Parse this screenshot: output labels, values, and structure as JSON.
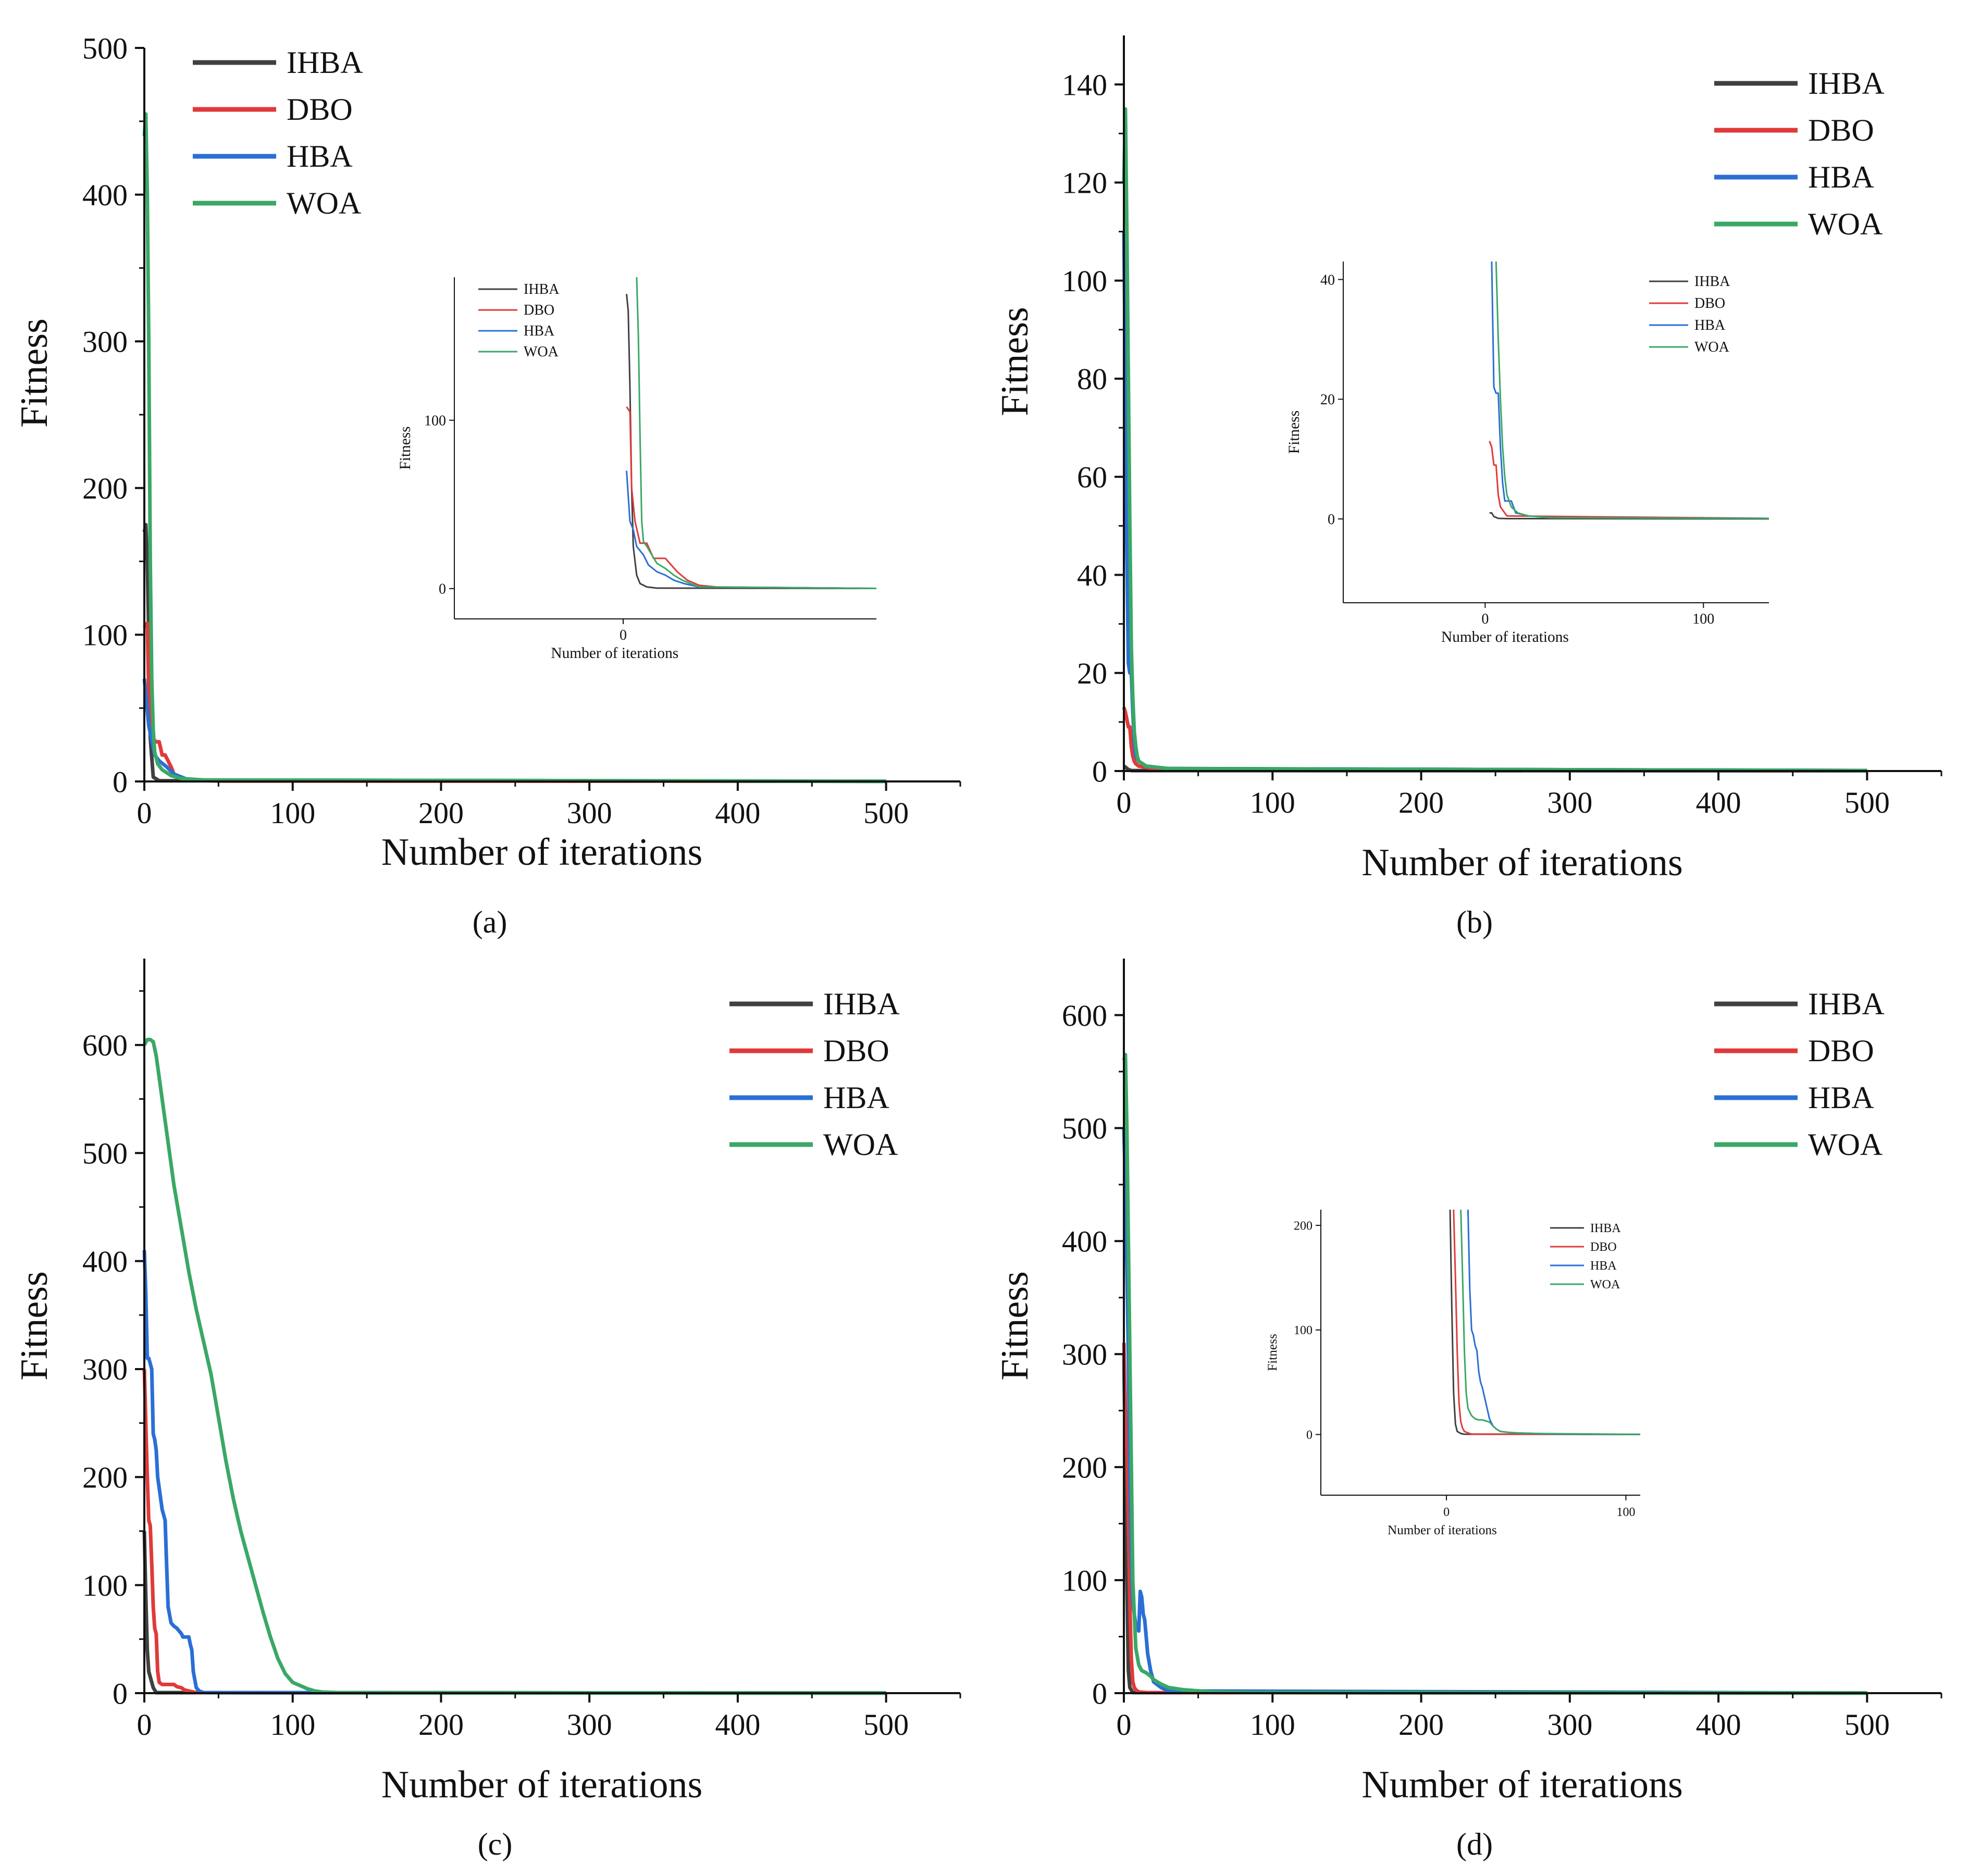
{
  "figure": {
    "caption_labels": [
      "(a)",
      "(b)",
      "(c)",
      "(d)"
    ]
  },
  "series_colors": {
    "IHBA": "#404040",
    "DBO": "#e03a3a",
    "HBA": "#2a6fd6",
    "WOA": "#3aa866"
  },
  "chart_data": [
    {
      "id": "a",
      "type": "line",
      "caption": "(a)",
      "xlabel": "Number of iterations",
      "ylabel": "Fitness",
      "xlim": [
        0,
        550
      ],
      "ylim": [
        0,
        500
      ],
      "xticks": [
        0,
        100,
        200,
        300,
        400,
        500
      ],
      "yticks": [
        0,
        100,
        200,
        300,
        400,
        500
      ],
      "legend": [
        "IHBA",
        "DBO",
        "HBA",
        "WOA"
      ],
      "series": [
        {
          "name": "IHBA",
          "x": [
            0,
            1,
            2,
            3,
            4,
            6,
            10,
            500
          ],
          "y": [
            170,
            175,
            150,
            100,
            30,
            3,
            0.5,
            0.1
          ]
        },
        {
          "name": "DBO",
          "x": [
            0,
            2,
            3,
            5,
            8,
            10,
            12,
            14,
            18,
            20,
            25,
            30,
            50,
            500
          ],
          "y": [
            105,
            108,
            60,
            30,
            27,
            27,
            18,
            18,
            10,
            5,
            3,
            1,
            0.3,
            0.1
          ]
        },
        {
          "name": "HBA",
          "x": [
            0,
            1,
            3,
            5,
            7,
            10,
            15,
            20,
            25,
            30,
            500
          ],
          "y": [
            70,
            60,
            38,
            28,
            18,
            14,
            10,
            5,
            3,
            1,
            0.1
          ]
        },
        {
          "name": "WOA",
          "x": [
            0,
            1,
            2,
            3,
            4,
            5,
            6,
            7,
            9,
            12,
            18,
            25,
            40,
            500
          ],
          "y": [
            440,
            455,
            400,
            300,
            150,
            70,
            35,
            20,
            12,
            8,
            4,
            2,
            1,
            0.1
          ]
        }
      ],
      "inset": {
        "xlabel": "Number of iterations",
        "ylabel": "Fitness",
        "xlim": [
          -100,
          150
        ],
        "ylim": [
          -18,
          185
        ],
        "xticks": [
          0
        ],
        "yticks": [
          0,
          100
        ],
        "legend": [
          "IHBA",
          "DBO",
          "HBA",
          "WOA"
        ],
        "series": [
          {
            "name": "IHBA",
            "x": [
              2,
              3,
              4,
              5,
              6,
              8,
              10,
              14,
              20,
              150
            ],
            "y": [
              175,
              165,
              120,
              60,
              25,
              8,
              3,
              1,
              0.3,
              0.1
            ]
          },
          {
            "name": "DBO",
            "x": [
              2,
              4,
              5,
              7,
              10,
              14,
              18,
              25,
              32,
              38,
              45,
              55,
              150
            ],
            "y": [
              108,
              105,
              60,
              40,
              27,
              27,
              18,
              18,
              10,
              5,
              2,
              1,
              0.1
            ]
          },
          {
            "name": "HBA",
            "x": [
              2,
              4,
              6,
              8,
              12,
              15,
              20,
              25,
              30,
              36,
              45,
              150
            ],
            "y": [
              70,
              40,
              35,
              25,
              20,
              14,
              10,
              8,
              5,
              3,
              1,
              0.1
            ]
          },
          {
            "name": "WOA",
            "x": [
              8,
              9,
              10,
              11,
              12,
              14,
              17,
              20,
              25,
              30,
              35,
              45,
              150
            ],
            "y": [
              185,
              150,
              90,
              40,
              28,
              25,
              20,
              15,
              12,
              8,
              5,
              1,
              0.1
            ]
          }
        ]
      }
    },
    {
      "id": "b",
      "type": "line",
      "caption": "(b)",
      "xlabel": "Number of iterations",
      "ylabel": "Fitness",
      "xlim": [
        0,
        550
      ],
      "ylim": [
        0,
        150
      ],
      "xticks": [
        0,
        100,
        200,
        300,
        400,
        500
      ],
      "yticks": [
        0,
        20,
        40,
        60,
        80,
        100,
        120,
        140
      ],
      "legend": [
        "IHBA",
        "DBO",
        "HBA",
        "WOA"
      ],
      "series": [
        {
          "name": "IHBA",
          "x": [
            0,
            1,
            3,
            5,
            500
          ],
          "y": [
            1,
            0.8,
            0.3,
            0.1,
            0.05
          ]
        },
        {
          "name": "DBO",
          "x": [
            0,
            1,
            3,
            4,
            5,
            6,
            7,
            8,
            10,
            20,
            500
          ],
          "y": [
            13,
            12,
            9,
            9,
            5,
            3,
            2,
            1.5,
            1,
            0.5,
            0.1
          ]
        },
        {
          "name": "HBA",
          "x": [
            0,
            1,
            2,
            3,
            4,
            5,
            6,
            7,
            8,
            10,
            15,
            30,
            500
          ],
          "y": [
            110,
            80,
            45,
            22,
            20,
            20,
            12,
            6,
            3,
            2,
            1,
            0.5,
            0.1
          ]
        },
        {
          "name": "WOA",
          "x": [
            0,
            1,
            2,
            3,
            4,
            5,
            6,
            7,
            8,
            9,
            10,
            15,
            30,
            500
          ],
          "y": [
            120,
            135,
            110,
            80,
            50,
            25,
            15,
            8,
            5,
            3,
            2,
            1,
            0.5,
            0.1
          ]
        }
      ],
      "inset": {
        "xlabel": "Number of iterations",
        "ylabel": "Fitness",
        "xlim": [
          -65,
          130
        ],
        "ylim": [
          -14,
          43
        ],
        "xticks": [
          0,
          100
        ],
        "yticks": [
          0,
          20,
          40
        ],
        "legend": [
          "IHBA",
          "DBO",
          "HBA",
          "WOA"
        ],
        "series": [
          {
            "name": "IHBA",
            "x": [
              2,
              3,
              4,
              6,
              10,
              130
            ],
            "y": [
              1,
              1,
              0.4,
              0.1,
              0.05,
              0.02
            ]
          },
          {
            "name": "DBO",
            "x": [
              2,
              3,
              4,
              5,
              6,
              7,
              8,
              9,
              10,
              130
            ],
            "y": [
              13,
              12,
              9,
              9,
              4,
              2,
              1.5,
              1,
              0.5,
              0.1
            ]
          },
          {
            "name": "HBA",
            "x": [
              3,
              4,
              5,
              6,
              7,
              8,
              9,
              10,
              12,
              14,
              20,
              30,
              130
            ],
            "y": [
              43,
              22,
              21,
              21,
              12,
              6,
              3,
              3,
              3,
              1,
              0.5,
              0.2,
              0.1
            ]
          },
          {
            "name": "WOA",
            "x": [
              5,
              6,
              7,
              8,
              9,
              10,
              12,
              15,
              20,
              30,
              130
            ],
            "y": [
              43,
              30,
              20,
              12,
              7,
              4,
              2,
              1,
              0.5,
              0.2,
              0.1
            ]
          }
        ]
      }
    },
    {
      "id": "c",
      "type": "line",
      "caption": "(c)",
      "xlabel": "Number of iterations",
      "ylabel": "Fitness",
      "xlim": [
        0,
        550
      ],
      "ylim": [
        0,
        680
      ],
      "xticks": [
        0,
        100,
        200,
        300,
        400,
        500
      ],
      "yticks": [
        0,
        100,
        200,
        300,
        400,
        500,
        600
      ],
      "legend": [
        "IHBA",
        "DBO",
        "HBA",
        "WOA"
      ],
      "series": [
        {
          "name": "IHBA",
          "x": [
            0,
            1,
            2,
            3,
            4,
            6,
            8,
            500
          ],
          "y": [
            150,
            90,
            40,
            20,
            15,
            5,
            0.5,
            0.1
          ]
        },
        {
          "name": "DBO",
          "x": [
            0,
            1,
            2,
            3,
            4,
            5,
            6,
            7,
            8,
            9,
            10,
            12,
            20,
            22,
            25,
            27,
            30,
            35,
            500
          ],
          "y": [
            300,
            250,
            200,
            160,
            155,
            120,
            80,
            60,
            55,
            20,
            10,
            8,
            8,
            6,
            5,
            3,
            2,
            0.5,
            0.1
          ]
        },
        {
          "name": "HBA",
          "x": [
            0,
            1,
            2,
            3,
            5,
            6,
            7,
            8,
            9,
            10,
            12,
            14,
            15,
            16,
            18,
            20,
            22,
            25,
            26,
            28,
            30,
            31,
            32,
            33,
            35,
            37,
            40,
            500
          ],
          "y": [
            410,
            370,
            310,
            310,
            300,
            240,
            235,
            225,
            200,
            190,
            170,
            160,
            120,
            80,
            65,
            62,
            60,
            55,
            52,
            52,
            52,
            45,
            40,
            20,
            5,
            2,
            0.5,
            0.1
          ]
        },
        {
          "name": "WOA",
          "x": [
            0,
            2,
            4,
            6,
            8,
            10,
            15,
            20,
            25,
            30,
            35,
            40,
            45,
            50,
            55,
            60,
            65,
            70,
            75,
            80,
            85,
            90,
            95,
            100,
            105,
            110,
            115,
            120,
            130,
            150,
            500
          ],
          "y": [
            600,
            605,
            605,
            603,
            590,
            570,
            520,
            470,
            430,
            390,
            355,
            325,
            295,
            255,
            215,
            180,
            150,
            125,
            100,
            75,
            52,
            32,
            18,
            10,
            7,
            4,
            2,
            1,
            0.5,
            0.2,
            0.1
          ]
        }
      ]
    },
    {
      "id": "d",
      "type": "line",
      "caption": "(d)",
      "xlabel": "Number of iterations",
      "ylabel": "Fitness",
      "xlim": [
        0,
        550
      ],
      "ylim": [
        0,
        650
      ],
      "xticks": [
        0,
        100,
        200,
        300,
        400,
        500
      ],
      "yticks": [
        0,
        100,
        200,
        300,
        400,
        500,
        600
      ],
      "legend": [
        "IHBA",
        "DBO",
        "HBA",
        "WOA"
      ],
      "series": [
        {
          "name": "IHBA",
          "x": [
            0,
            1,
            2,
            3,
            4,
            6,
            500
          ],
          "y": [
            300,
            200,
            100,
            20,
            5,
            0.5,
            0.1
          ]
        },
        {
          "name": "DBO",
          "x": [
            0,
            1,
            2,
            3,
            4,
            5,
            6,
            7,
            8,
            10,
            15,
            500
          ],
          "y": [
            310,
            250,
            220,
            150,
            80,
            30,
            10,
            5,
            3,
            1,
            0.5,
            0.1
          ]
        },
        {
          "name": "HBA",
          "x": [
            0,
            1,
            2,
            3,
            4,
            5,
            6,
            8,
            10,
            11,
            12,
            13,
            14,
            15,
            16,
            18,
            20,
            25,
            30,
            500
          ],
          "y": [
            500,
            450,
            380,
            300,
            200,
            120,
            80,
            60,
            55,
            90,
            85,
            70,
            65,
            50,
            35,
            20,
            10,
            5,
            2,
            0.1
          ]
        },
        {
          "name": "WOA",
          "x": [
            0,
            1,
            2,
            3,
            4,
            5,
            6,
            8,
            10,
            12,
            15,
            18,
            20,
            25,
            30,
            40,
            60,
            80,
            500
          ],
          "y": [
            560,
            565,
            500,
            400,
            300,
            200,
            100,
            40,
            25,
            20,
            18,
            15,
            12,
            8,
            5,
            3,
            1,
            0.5,
            0.1
          ]
        }
      ],
      "inset": {
        "xlabel": "Number of iterations",
        "ylabel": "Fitness",
        "xlim": [
          -70,
          108
        ],
        "ylim": [
          -58,
          215
        ],
        "xticks": [
          0,
          100
        ],
        "yticks": [
          0,
          100,
          200
        ],
        "legend": [
          "IHBA",
          "DBO",
          "HBA",
          "WOA"
        ],
        "series": [
          {
            "name": "IHBA",
            "x": [
              2,
              3,
              4,
              5,
              6,
              8,
              10,
              108
            ],
            "y": [
              215,
              120,
              40,
              10,
              3,
              1,
              0.3,
              0.1
            ]
          },
          {
            "name": "DBO",
            "x": [
              4,
              5,
              6,
              7,
              8,
              9,
              10,
              12,
              14,
              108
            ],
            "y": [
              215,
              150,
              80,
              30,
              12,
              6,
              3,
              1.5,
              0.5,
              0.1
            ]
          },
          {
            "name": "HBA",
            "x": [
              12,
              13,
              14,
              15,
              16,
              17,
              18,
              19,
              20,
              22,
              24,
              26,
              28,
              30,
              35,
              40,
              50,
              60,
              108
            ],
            "y": [
              215,
              140,
              100,
              95,
              85,
              80,
              60,
              50,
              45,
              30,
              15,
              8,
              5,
              3,
              2,
              1.5,
              1,
              0.5,
              0.1
            ]
          },
          {
            "name": "WOA",
            "x": [
              8,
              9,
              10,
              11,
              12,
              14,
              16,
              18,
              20,
              22,
              24,
              26,
              28,
              30,
              35,
              40,
              50,
              108
            ],
            "y": [
              215,
              150,
              80,
              40,
              25,
              18,
              15,
              14,
              14,
              13,
              12,
              8,
              5,
              3,
              2,
              1.5,
              1,
              0.1
            ]
          }
        ]
      }
    }
  ]
}
